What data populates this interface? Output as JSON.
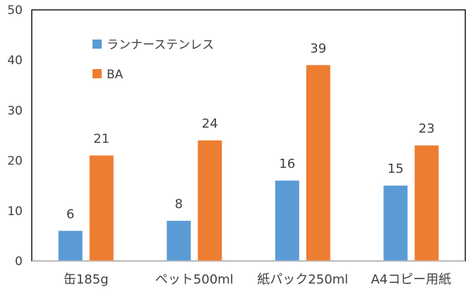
{
  "chart_data": {
    "type": "bar",
    "categories": [
      "缶185g",
      "ペット500ml",
      "紙パック250ml",
      "A4コピー用紙"
    ],
    "series": [
      {
        "name": "ランナーステンレス",
        "color": "#5B9BD5",
        "values": [
          6,
          8,
          16,
          15
        ]
      },
      {
        "name": "BA",
        "color": "#ED7D31",
        "values": [
          21,
          24,
          39,
          23
        ]
      }
    ],
    "ylim": [
      0,
      50
    ],
    "yticks": [
      0,
      10,
      20,
      30,
      40,
      50
    ],
    "grid": false,
    "legend_position": "top-left",
    "data_labels": true
  }
}
